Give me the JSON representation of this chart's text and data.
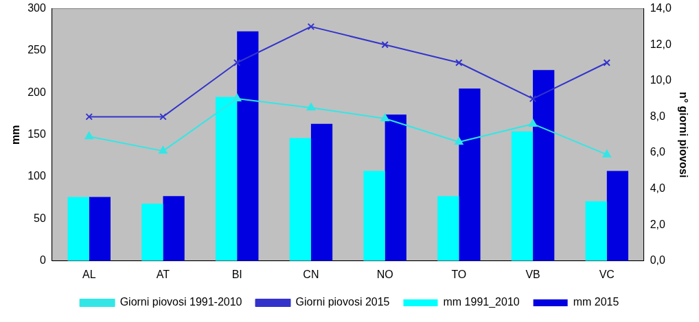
{
  "chart_data": {
    "type": "bar",
    "categories": [
      "AL",
      "AT",
      "BI",
      "CN",
      "NO",
      "TO",
      "VB",
      "VC"
    ],
    "ylabel": "mm",
    "y2label": "n° giorni piovosi",
    "series": [
      {
        "name": "mm 1991_2010",
        "color": "#00ffff",
        "values": [
          76,
          68,
          195,
          146,
          107,
          77,
          154,
          71
        ]
      },
      {
        "name": "mm 2015",
        "color": "#0000e0",
        "values": [
          76,
          77,
          273,
          163,
          174,
          205,
          227,
          107
        ]
      },
      {
        "name": "Giorni piovosi 1991-2010",
        "type": "line",
        "axis": "y2",
        "marker": "triangle",
        "color": "#33e6e6",
        "values": [
          6.9,
          6.1,
          9.0,
          8.5,
          7.9,
          6.6,
          7.6,
          5.9
        ]
      },
      {
        "name": "Giorni piovosi 2015",
        "type": "line",
        "axis": "y2",
        "marker": "cross",
        "color": "#3333cc",
        "values": [
          8,
          8,
          11,
          13,
          12,
          11,
          9,
          11
        ]
      }
    ],
    "ylim": [
      0,
      300
    ],
    "yticks": [
      0,
      50,
      100,
      150,
      200,
      250,
      300
    ],
    "y2lim": [
      0,
      14
    ],
    "y2ticks": [
      {
        "value": 0,
        "label": "0,0"
      },
      {
        "value": 2,
        "label": "2,0"
      },
      {
        "value": 4,
        "label": "4,0"
      },
      {
        "value": 6,
        "label": "6,0"
      },
      {
        "value": 8,
        "label": "8,0"
      },
      {
        "value": 10,
        "label": "10,0"
      },
      {
        "value": 12,
        "label": "12,0"
      },
      {
        "value": 14,
        "label": "14,0"
      }
    ],
    "grid": false,
    "legend": "bottom"
  }
}
